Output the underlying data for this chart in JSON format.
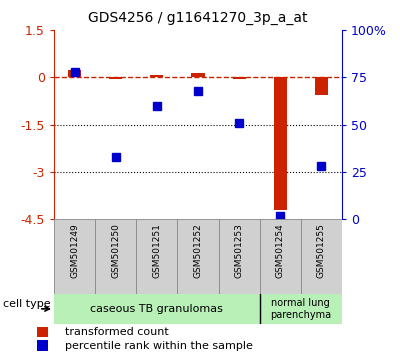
{
  "title": "GDS4256 / g11641270_3p_a_at",
  "samples": [
    "GSM501249",
    "GSM501250",
    "GSM501251",
    "GSM501252",
    "GSM501253",
    "GSM501254",
    "GSM501255"
  ],
  "transformed_count": [
    0.25,
    -0.05,
    0.08,
    0.15,
    -0.05,
    -4.2,
    -0.55
  ],
  "percentile_rank": [
    78,
    33,
    60,
    68,
    51,
    2,
    28
  ],
  "ylim_left": [
    -4.5,
    1.5
  ],
  "ylim_right": [
    0,
    100
  ],
  "left_ticks": [
    1.5,
    0,
    -1.5,
    -3,
    -4.5
  ],
  "right_ticks": [
    100,
    75,
    50,
    25,
    0
  ],
  "right_tick_labels": [
    "100%",
    "75",
    "50",
    "25",
    "0"
  ],
  "dotted_lines": [
    -1.5,
    -3
  ],
  "group1_label": "caseous TB granulomas",
  "group2_label": "normal lung\nparenchyma",
  "group1_color": "#b8f0b8",
  "group2_color": "#b8f0b8",
  "bar_color": "#CC2200",
  "dot_color": "#0000CC",
  "legend_bar_label": "transformed count",
  "legend_dot_label": "percentile rank within the sample",
  "cell_type_label": "cell type",
  "tick_area_bg": "#d0d0d0"
}
